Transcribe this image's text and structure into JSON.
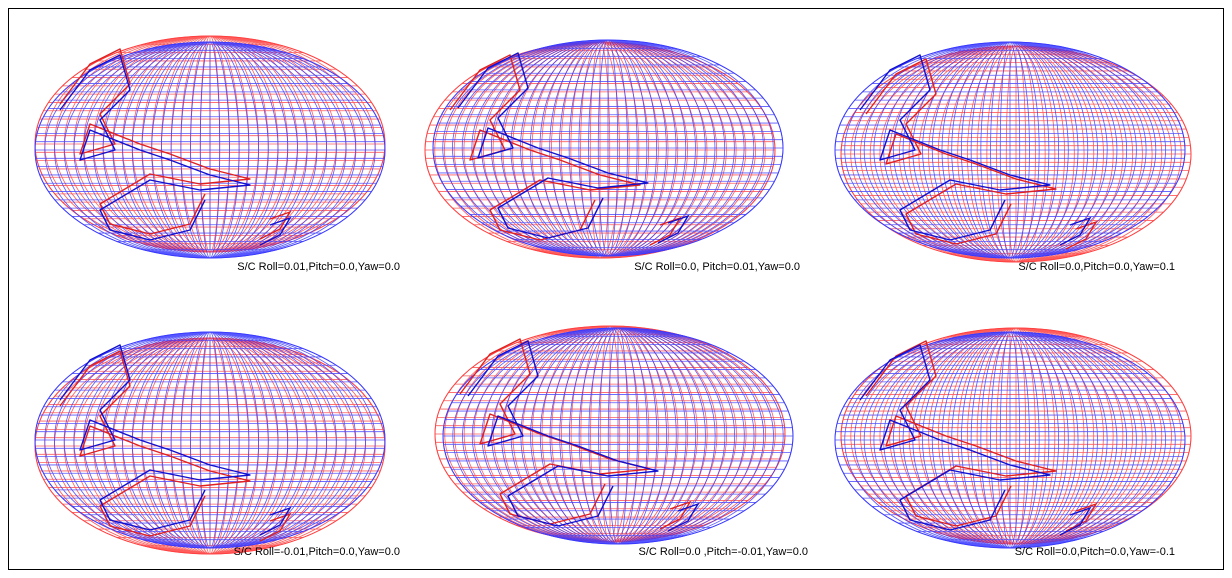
{
  "panels": [
    {
      "caption": "S/C Roll=0.01,Pitch=0.0,Yaw=0.0"
    },
    {
      "caption": "S/C Roll=0.0, Pitch=0.01,Yaw=0.0"
    },
    {
      "caption": "S/C Roll=0.0,Pitch=0.0,Yaw=0.1"
    },
    {
      "caption": "S/C Roll=-0.01,Pitch=0.0,Yaw=0.0"
    },
    {
      "caption": "S/C Roll=0.0 ,Pitch=-0.01,Yaw=0.0"
    },
    {
      "caption": "S/C Roll=0.0,Pitch=0.0,Yaw=-0.1"
    }
  ]
}
